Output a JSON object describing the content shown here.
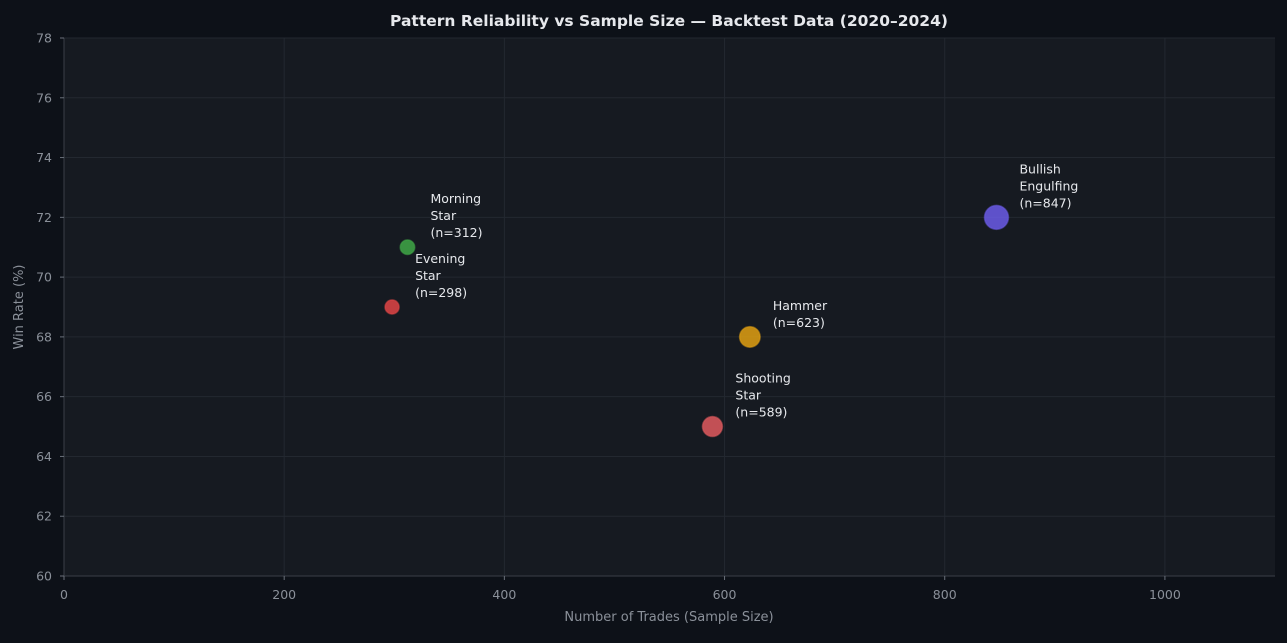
{
  "chart_data": {
    "type": "scatter",
    "title": "Pattern Reliability vs Sample Size — Backtest Data (2020–2024)",
    "xlabel": "Number of Trades (Sample Size)",
    "ylabel": "Win Rate (%)",
    "xlim": [
      0,
      1100
    ],
    "ylim": [
      60,
      78
    ],
    "xticks": [
      0,
      200,
      400,
      600,
      800,
      1000
    ],
    "yticks": [
      60,
      62,
      64,
      66,
      68,
      70,
      72,
      74,
      76,
      78
    ],
    "grid": true,
    "points": [
      {
        "label_lines": [
          "Bullish",
          "Engulfing",
          "(n=847)"
        ],
        "x": 847,
        "y": 72,
        "color": "#6b5ce7"
      },
      {
        "label_lines": [
          "Hammer",
          "(n=623)"
        ],
        "x": 623,
        "y": 68,
        "color": "#e1a012"
      },
      {
        "label_lines": [
          "Morning",
          "Star",
          "(n=312)"
        ],
        "x": 312,
        "y": 71,
        "color": "#3fa846"
      },
      {
        "label_lines": [
          "Shooting",
          "Star",
          "(n=589)"
        ],
        "x": 589,
        "y": 65,
        "color": "#e05a5e"
      },
      {
        "label_lines": [
          "Evening",
          "Star",
          "(n=298)"
        ],
        "x": 298,
        "y": 69,
        "color": "#e04545"
      }
    ]
  }
}
